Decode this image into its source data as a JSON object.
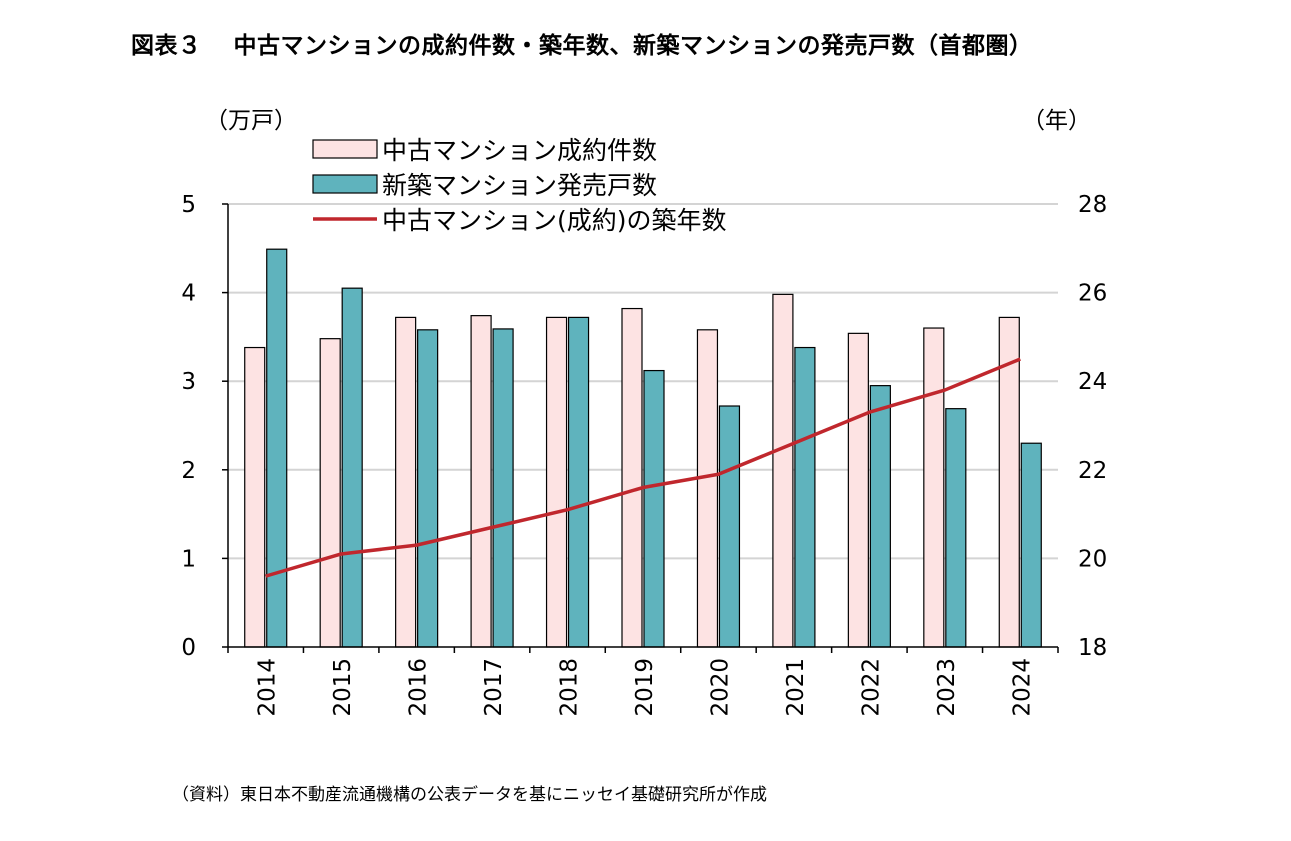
{
  "title": "図表３　 中古マンションの成約件数・築年数、新築マンションの発売戸数（首都圏）",
  "source": "（資料）東日本不動産流通機構の公表データを基にニッセイ基礎研究所が作成",
  "chart_data": {
    "type": "bar",
    "categories": [
      "2014",
      "2015",
      "2016",
      "2017",
      "2018",
      "2019",
      "2020",
      "2021",
      "2022",
      "2023",
      "2024"
    ],
    "series": [
      {
        "name": "中古マンション成約件数",
        "kind": "bar",
        "axis": "left",
        "color": "#fde3e3",
        "values": [
          3.38,
          3.48,
          3.72,
          3.74,
          3.72,
          3.82,
          3.58,
          3.98,
          3.54,
          3.6,
          3.72
        ]
      },
      {
        "name": "新築マンション発売戸数",
        "kind": "bar",
        "axis": "left",
        "color": "#5fb3bd",
        "values": [
          4.49,
          4.05,
          3.58,
          3.59,
          3.72,
          3.12,
          2.72,
          3.38,
          2.95,
          2.69,
          2.3
        ]
      },
      {
        "name": "中古マンション(成約)の築年数",
        "kind": "line",
        "axis": "right",
        "color": "#c0272d",
        "values": [
          19.6,
          20.1,
          20.3,
          20.7,
          21.1,
          21.6,
          21.9,
          22.6,
          23.3,
          23.8,
          24.5
        ]
      }
    ],
    "y_left": {
      "label": "（万戸）",
      "min": 0,
      "max": 5,
      "ticks": [
        "0",
        "1",
        "2",
        "3",
        "4",
        "5"
      ]
    },
    "y_right": {
      "label": "（年）",
      "min": 18,
      "max": 28,
      "ticks": [
        "18",
        "20",
        "22",
        "24",
        "26",
        "28"
      ]
    },
    "grid": true,
    "legend": "top-left"
  }
}
